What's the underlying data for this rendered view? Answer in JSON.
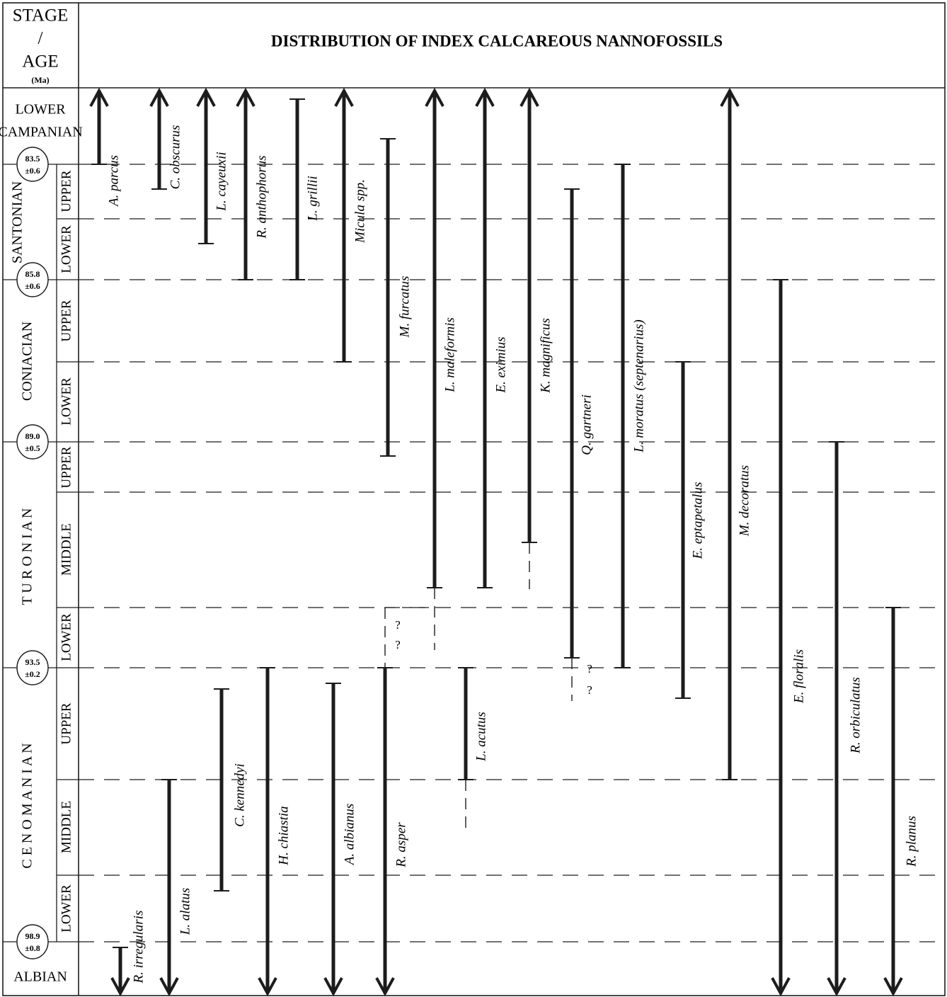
{
  "chart_data": {
    "type": "range-chart",
    "title": "DISTRIBUTION OF INDEX CALCAREOUS NANNOFOSSILS",
    "axis_header": {
      "line1": "STAGE",
      "line2": "/",
      "line3": "AGE",
      "line4": "(Ma)"
    },
    "stratigraphy": [
      {
        "stage": "LOWER CAMPANIAN",
        "lines": [
          "LOWER",
          "CAMPANIAN"
        ],
        "substages": []
      },
      {
        "stage": "SANTONIAN",
        "lines": [
          "SANTONIAN"
        ],
        "substages": [
          "UPPER",
          "LOWER"
        ]
      },
      {
        "stage": "CONIACIAN",
        "lines": [
          "CONIACIAN"
        ],
        "substages": [
          "UPPER",
          "LOWER"
        ]
      },
      {
        "stage": "TURONIAN",
        "lines": [
          "T U R O N I A N"
        ],
        "substages": [
          "UPPER",
          "MIDDLE",
          "LOWER"
        ]
      },
      {
        "stage": "CENOMANIAN",
        "lines": [
          "C E N O M A N I A N"
        ],
        "substages": [
          "UPPER",
          "MIDDLE",
          "LOWER"
        ]
      },
      {
        "stage": "ALBIAN",
        "lines": [
          "ALBIAN"
        ],
        "substages": []
      }
    ],
    "age_boundaries": [
      {
        "age": "83.5",
        "error": "±0.6"
      },
      {
        "age": "85.8",
        "error": "±0.6"
      },
      {
        "age": "89.0",
        "error": "±0.5"
      },
      {
        "age": "93.5",
        "error": "±0.2"
      },
      {
        "age": "98.9",
        "error": "±0.8"
      }
    ],
    "taxa": [
      {
        "name": "A. parcus",
        "base": "Upper Santonian (base)",
        "top": "extends above Lower Campanian"
      },
      {
        "name": "C. obscurus",
        "base": "Upper Santonian",
        "top": "extends above Lower Campanian"
      },
      {
        "name": "L. cayeuxii",
        "base": "Lower Santonian",
        "top": "extends above Lower Campanian"
      },
      {
        "name": "R. anthophorus",
        "base": "Santonian (base)",
        "top": "extends above Lower Campanian"
      },
      {
        "name": "L. grillii",
        "base": "Santonian (base)",
        "top": "Lower Campanian"
      },
      {
        "name": "Micula spp.",
        "base": "Upper Coniacian (base)",
        "top": "extends above Lower Campanian"
      },
      {
        "name": "M. furcatus",
        "base": "Upper Turonian",
        "top": "Lower Campanian"
      },
      {
        "name": "L. maleformis",
        "base": "Middle Turonian",
        "top": "extends above Lower Campanian",
        "uncertain_extension": "Lower Turonian"
      },
      {
        "name": "E. eximius",
        "base": "Middle Turonian",
        "top": "extends above Lower Campanian"
      },
      {
        "name": "K. magnificus",
        "base": "Middle Turonian",
        "top": "extends above Lower Campanian",
        "uncertain_extension": "Middle Turonian"
      },
      {
        "name": "Q. gartneri",
        "base": "Lower Turonian",
        "top": "Upper Santonian",
        "uncertain_extension": "Upper Cenomanian"
      },
      {
        "name": "L. moratus (septenarius)",
        "base": "Turonian (base)",
        "top": "Upper Santonian (base)"
      },
      {
        "name": "E. eptapetalus",
        "base": "Upper Cenomanian",
        "top": "Lower Coniacian (base)"
      },
      {
        "name": "M. decoratus",
        "base": "Upper Cenomanian (base)",
        "top": "extends above Lower Campanian"
      },
      {
        "name": "E. floralis",
        "base": "extends below Albian",
        "top": "Coniacian (base)"
      },
      {
        "name": "R. orbiculatus",
        "base": "extends below Albian",
        "top": "Upper Turonian (base)"
      },
      {
        "name": "R. planus",
        "base": "extends below Albian",
        "top": "Lower Turonian (base)"
      },
      {
        "name": "R. irregularis",
        "base": "extends below Albian",
        "top": "Albian"
      },
      {
        "name": "L. alatus",
        "base": "extends below Albian",
        "top": "Middle Cenomanian (base)"
      },
      {
        "name": "C. kennedyi",
        "base": "Lower Cenomanian",
        "top": "Upper Cenomanian"
      },
      {
        "name": "H. chiastia",
        "base": "extends below Albian",
        "top": "Turonian (base)"
      },
      {
        "name": "A. albianus",
        "base": "extends below Albian",
        "top": "Upper Cenomanian"
      },
      {
        "name": "R. asper",
        "base": "extends below Albian",
        "top": "Turonian (base)",
        "uncertain_extension": "Lower Turonian"
      },
      {
        "name": "L. acutus",
        "base": "Upper Cenomanian (base)",
        "top": "Turonian (base)",
        "uncertain_extension": "Middle Cenomanian"
      }
    ],
    "question_marks": [
      "?",
      "?",
      "?",
      "?"
    ]
  }
}
